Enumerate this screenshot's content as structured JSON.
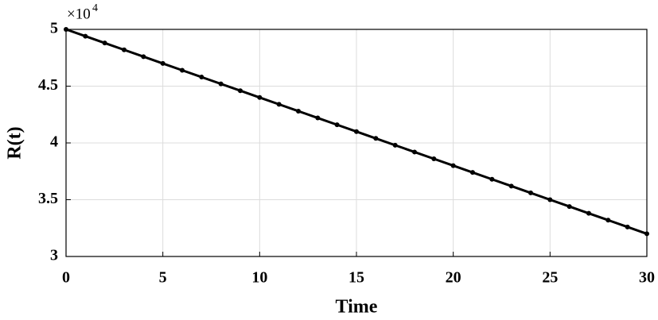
{
  "chart_data": {
    "type": "line",
    "xlabel": "Time",
    "ylabel": "R(t)",
    "y_multiplier": "×10",
    "y_multiplier_exponent": "4",
    "x": [
      0,
      1,
      2,
      3,
      4,
      5,
      6,
      7,
      8,
      9,
      10,
      11,
      12,
      13,
      14,
      15,
      16,
      17,
      18,
      19,
      20,
      21,
      22,
      23,
      24,
      25,
      26,
      27,
      28,
      29,
      30
    ],
    "series": [
      {
        "color": "#000000",
        "values": [
          50000,
          49400,
          48800,
          48200,
          47600,
          47000,
          46400,
          45800,
          45200,
          44600,
          44000,
          43400,
          42800,
          42200,
          41600,
          41000,
          40400,
          39800,
          39200,
          38600,
          38000,
          37400,
          36800,
          36200,
          35600,
          35000,
          34400,
          33800,
          33200,
          32600,
          32000
        ]
      }
    ],
    "xlim": [
      0,
      30
    ],
    "xticks": [
      0,
      5,
      10,
      15,
      20,
      25,
      30
    ],
    "ylim": [
      30000,
      50000
    ],
    "yticks": [
      {
        "value": 30000,
        "label": "3"
      },
      {
        "value": 35000,
        "label": "3.5"
      },
      {
        "value": 40000,
        "label": "4"
      },
      {
        "value": 45000,
        "label": "4.5"
      },
      {
        "value": 50000,
        "label": "5"
      }
    ],
    "grid": true
  }
}
